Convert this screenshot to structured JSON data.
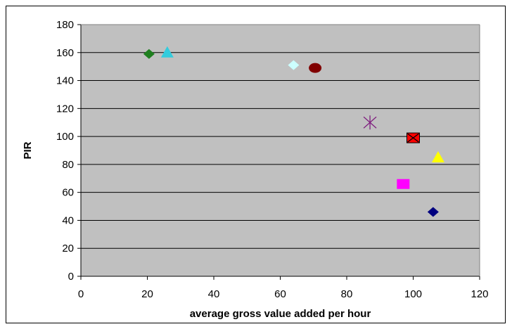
{
  "chart_data": {
    "type": "scatter",
    "xlabel": "average gross value added per hour",
    "ylabel": "PIR",
    "xlim": [
      0,
      120
    ],
    "ylim": [
      0,
      180
    ],
    "x_ticks": [
      0,
      20,
      40,
      60,
      80,
      100,
      120
    ],
    "y_ticks": [
      0,
      20,
      40,
      60,
      80,
      100,
      120,
      140,
      160,
      180
    ],
    "grid": "horizontal",
    "plot_background": "#c0c0c0",
    "legend": "none",
    "points": [
      {
        "x": 20.5,
        "y": 159,
        "marker": "diamond",
        "color": "#1f7f1f"
      },
      {
        "x": 26,
        "y": 160,
        "marker": "triangle",
        "color": "#33ccdd"
      },
      {
        "x": 64,
        "y": 151,
        "marker": "diamond",
        "color": "#ccffff"
      },
      {
        "x": 70.5,
        "y": 149,
        "marker": "circle",
        "color": "#800000"
      },
      {
        "x": 87,
        "y": 110,
        "marker": "star",
        "color": "#7f1f7f"
      },
      {
        "x": 100,
        "y": 99,
        "marker": "x-square",
        "color": "#ff0000"
      },
      {
        "x": 107.5,
        "y": 85,
        "marker": "triangle",
        "color": "#ffff00"
      },
      {
        "x": 97,
        "y": 66,
        "marker": "square",
        "color": "#ff00ff"
      },
      {
        "x": 106,
        "y": 46,
        "marker": "diamond",
        "color": "#000080"
      }
    ]
  }
}
